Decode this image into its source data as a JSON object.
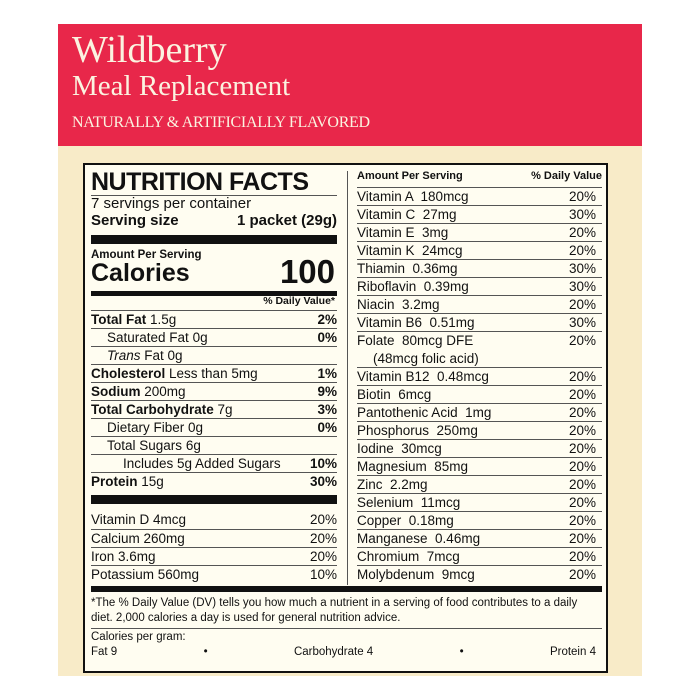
{
  "banner": {
    "title": "Wildberry",
    "subtitle": "Meal Replacement",
    "flavor": "NATURALLY & ARTIFICIALLY FLAVORED"
  },
  "left": {
    "heading": "NUTRITION FACTS",
    "servings": "7 servings per container",
    "serving_size_label": "Serving size",
    "serving_size_value": "1 packet (29g)",
    "amount_per_serving": "Amount Per Serving",
    "calories_label": "Calories",
    "calories_value": "100",
    "dv_header": "% Daily Value*",
    "nutrients": [
      {
        "name": "Total Fat",
        "amount": "1.5g",
        "dv": "2%",
        "bold": true,
        "indent": 0
      },
      {
        "name": "Saturated Fat",
        "amount": "0g",
        "dv": "0%",
        "bold": false,
        "indent": 1
      },
      {
        "name": "Trans",
        "amount": "Fat 0g",
        "dv": "",
        "bold": false,
        "indent": 1,
        "italic": true
      },
      {
        "name": "Cholesterol",
        "amount": "Less than 5mg",
        "dv": "1%",
        "bold": true,
        "indent": 0
      },
      {
        "name": "Sodium",
        "amount": "200mg",
        "dv": "9%",
        "bold": true,
        "indent": 0
      },
      {
        "name": "Total Carbohydrate",
        "amount": "7g",
        "dv": "3%",
        "bold": true,
        "indent": 0
      },
      {
        "name": "Dietary Fiber",
        "amount": "0g",
        "dv": "0%",
        "bold": false,
        "indent": 1
      },
      {
        "name": "Total Sugars",
        "amount": "6g",
        "dv": "",
        "bold": false,
        "indent": 1
      },
      {
        "name": "Includes 5g Added Sugars",
        "amount": "",
        "dv": "10%",
        "bold": false,
        "indent": 2
      },
      {
        "name": "Protein",
        "amount": "15g",
        "dv": "30%",
        "bold": true,
        "indent": 0
      }
    ],
    "vitamins": [
      {
        "name": "Vitamin D 4mcg",
        "dv": "20%"
      },
      {
        "name": "Calcium 260mg",
        "dv": "20%"
      },
      {
        "name": "Iron 3.6mg",
        "dv": "20%"
      },
      {
        "name": "Potassium 560mg",
        "dv": "10%"
      }
    ]
  },
  "right": {
    "header_left": "Amount Per Serving",
    "header_right": "% Daily Value",
    "rows": [
      {
        "name": "Vitamin A  180mcg",
        "dv": "20%"
      },
      {
        "name": "Vitamin C  27mg",
        "dv": "30%"
      },
      {
        "name": "Vitamin E  3mg",
        "dv": "20%"
      },
      {
        "name": "Vitamin K  24mcg",
        "dv": "20%"
      },
      {
        "name": "Thiamin  0.36mg",
        "dv": "30%"
      },
      {
        "name": "Riboflavin  0.39mg",
        "dv": "30%"
      },
      {
        "name": "Niacin  3.2mg",
        "dv": "20%"
      },
      {
        "name": "Vitamin B6  0.51mg",
        "dv": "30%"
      },
      {
        "name": "Folate  80mcg DFE",
        "sub": "(48mcg folic acid)",
        "dv": "20%"
      },
      {
        "name": "Vitamin B12  0.48mcg",
        "dv": "20%"
      },
      {
        "name": "Biotin  6mcg",
        "dv": "20%"
      },
      {
        "name": "Pantothenic Acid  1mg",
        "dv": "20%"
      },
      {
        "name": "Phosphorus  250mg",
        "dv": "20%"
      },
      {
        "name": "Iodine  30mcg",
        "dv": "20%"
      },
      {
        "name": "Magnesium  85mg",
        "dv": "20%"
      },
      {
        "name": "Zinc  2.2mg",
        "dv": "20%"
      },
      {
        "name": "Selenium  11mcg",
        "dv": "20%"
      },
      {
        "name": "Copper  0.18mg",
        "dv": "20%"
      },
      {
        "name": "Manganese  0.46mg",
        "dv": "20%"
      },
      {
        "name": "Chromium  7mcg",
        "dv": "20%"
      },
      {
        "name": "Molybdenum  9mcg",
        "dv": "20%"
      }
    ]
  },
  "footer": {
    "note": "*The % Daily Value (DV) tells you how much a nutrient in a serving of food contributes to a daily diet. 2,000 calories a day is used for general nutrition advice.",
    "cal_per_gram": "Calories per gram:",
    "fat": "Fat 9",
    "carb": "Carbohydrate 4",
    "protein": "Protein 4",
    "bullet": "•"
  }
}
